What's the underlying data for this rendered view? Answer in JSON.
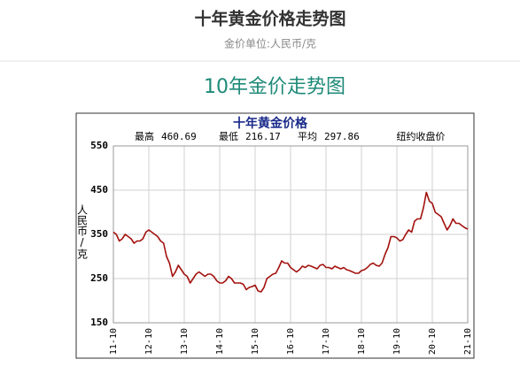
{
  "header": {
    "title": "十年黄金价格走势图",
    "subtitle": "金价单位:人民币/克"
  },
  "section_title": "10年金价走势图",
  "chart_data": {
    "type": "line",
    "title": "十年黄金价格",
    "stats": [
      {
        "label": "最高",
        "value": 460.69
      },
      {
        "label": "最低",
        "value": 216.17
      },
      {
        "label": "平均",
        "value": 297.86
      }
    ],
    "source_note": "纽约收盘价",
    "ylabel": "人民币/克",
    "color": "#a3120f",
    "ylim": [
      150,
      550
    ],
    "yticks": [
      150,
      250,
      350,
      450,
      550
    ],
    "grid": true,
    "categories": [
      "11-10",
      null,
      null,
      null,
      null,
      null,
      null,
      null,
      null,
      null,
      null,
      null,
      "12-10",
      null,
      null,
      null,
      null,
      null,
      null,
      null,
      null,
      null,
      null,
      null,
      "13-10",
      null,
      null,
      null,
      null,
      null,
      null,
      null,
      null,
      null,
      null,
      null,
      "14-10",
      null,
      null,
      null,
      null,
      null,
      null,
      null,
      null,
      null,
      null,
      null,
      "15-10",
      null,
      null,
      null,
      null,
      null,
      null,
      null,
      null,
      null,
      null,
      null,
      "16-10",
      null,
      null,
      null,
      null,
      null,
      null,
      null,
      null,
      null,
      null,
      null,
      "17-10",
      null,
      null,
      null,
      null,
      null,
      null,
      null,
      null,
      null,
      null,
      null,
      "18-10",
      null,
      null,
      null,
      null,
      null,
      null,
      null,
      null,
      null,
      null,
      null,
      "19-10",
      null,
      null,
      null,
      null,
      null,
      null,
      null,
      null,
      null,
      null,
      null,
      "20-10",
      null,
      null,
      null,
      null,
      null,
      null,
      null,
      null,
      null,
      null,
      null,
      "21-10"
    ],
    "values": [
      355,
      350,
      335,
      340,
      350,
      345,
      340,
      330,
      335,
      335,
      340,
      355,
      360,
      355,
      350,
      345,
      335,
      330,
      300,
      285,
      255,
      265,
      280,
      270,
      260,
      255,
      240,
      250,
      260,
      265,
      260,
      255,
      260,
      260,
      255,
      245,
      240,
      240,
      245,
      255,
      250,
      240,
      240,
      240,
      237,
      225,
      230,
      232,
      235,
      222,
      220,
      230,
      250,
      255,
      260,
      262,
      275,
      290,
      285,
      285,
      275,
      270,
      265,
      270,
      278,
      275,
      280,
      278,
      275,
      272,
      280,
      282,
      275,
      275,
      272,
      278,
      275,
      272,
      275,
      270,
      268,
      265,
      262,
      262,
      268,
      270,
      275,
      282,
      285,
      280,
      278,
      285,
      305,
      320,
      345,
      345,
      342,
      335,
      338,
      350,
      360,
      355,
      380,
      385,
      385,
      410,
      445,
      425,
      420,
      400,
      395,
      390,
      375,
      360,
      370,
      385,
      375,
      375,
      370,
      365,
      362
    ]
  }
}
